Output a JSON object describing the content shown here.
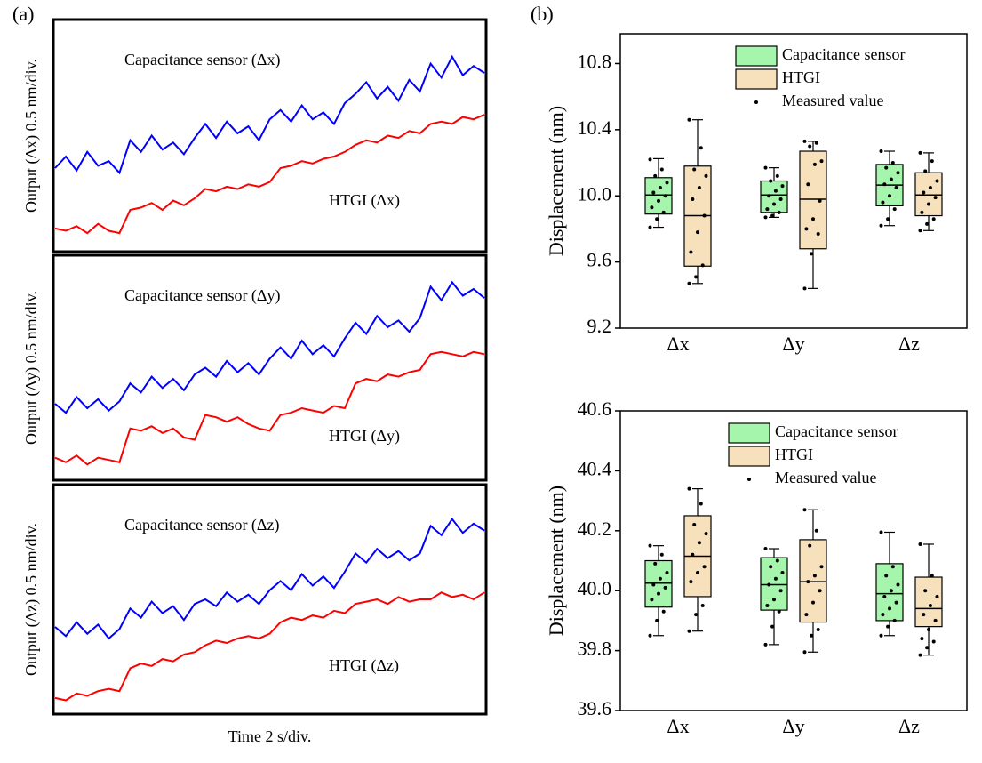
{
  "chart_data": [
    {
      "type": "line",
      "panel_label": "(a)",
      "ylabel": "Output (Δx) 0.5 nm/div.",
      "ylim": [
        0,
        10
      ],
      "series": [
        {
          "name": "Capacitance sensor (Δx)",
          "color": "#0000ff",
          "values": [
            3.6,
            4.1,
            3.5,
            4.3,
            3.7,
            3.9,
            3.4,
            4.8,
            4.3,
            5.0,
            4.4,
            4.7,
            4.2,
            4.9,
            5.5,
            4.9,
            5.6,
            5.1,
            5.4,
            4.8,
            5.7,
            6.1,
            5.6,
            6.3,
            5.7,
            6.0,
            5.5,
            6.4,
            6.8,
            7.3,
            6.6,
            7.1,
            6.5,
            7.4,
            6.9,
            8.1,
            7.5,
            8.4,
            7.6,
            8.0,
            7.7
          ]
        },
        {
          "name": "HTGI (Δx)",
          "color": "#ff0000",
          "values": [
            1.0,
            0.9,
            1.1,
            0.8,
            1.2,
            0.9,
            0.8,
            1.8,
            1.9,
            2.1,
            1.8,
            2.2,
            2.0,
            2.3,
            2.7,
            2.6,
            2.8,
            2.7,
            2.9,
            2.8,
            3.0,
            3.6,
            3.7,
            3.9,
            3.8,
            4.0,
            4.1,
            4.3,
            4.6,
            4.8,
            4.7,
            5.0,
            4.9,
            5.2,
            5.1,
            5.5,
            5.6,
            5.5,
            5.8,
            5.7,
            5.9
          ]
        }
      ]
    },
    {
      "type": "line",
      "ylabel": "Output (Δy) 0.5 nm/div.",
      "ylim": [
        0,
        10
      ],
      "series": [
        {
          "name": "Capacitance sensor (Δy)",
          "color": "#0000ff",
          "values": [
            3.4,
            3.0,
            3.7,
            3.2,
            3.6,
            3.1,
            3.5,
            4.3,
            3.9,
            4.6,
            4.1,
            4.5,
            4.0,
            4.7,
            5.0,
            4.6,
            5.3,
            4.8,
            5.2,
            4.7,
            5.4,
            5.9,
            5.4,
            6.2,
            5.6,
            6.0,
            5.5,
            6.3,
            7.0,
            6.5,
            7.3,
            6.8,
            7.1,
            6.6,
            7.2,
            8.6,
            8.0,
            8.8,
            8.2,
            8.5,
            8.1
          ]
        },
        {
          "name": "HTGI (Δy)",
          "color": "#ff0000",
          "values": [
            1.0,
            0.8,
            1.1,
            0.7,
            1.0,
            0.9,
            0.8,
            2.3,
            2.2,
            2.4,
            2.1,
            2.3,
            1.9,
            1.8,
            2.9,
            2.8,
            2.6,
            2.8,
            2.5,
            2.3,
            2.2,
            2.9,
            3.0,
            3.2,
            3.1,
            3.0,
            3.3,
            3.2,
            4.3,
            4.5,
            4.4,
            4.7,
            4.6,
            4.8,
            4.9,
            5.6,
            5.7,
            5.6,
            5.5,
            5.7,
            5.6
          ]
        }
      ]
    },
    {
      "type": "line",
      "ylabel": "Output (Δz) 0.5 nm/div.",
      "xlabel": "Time 2 s/div.",
      "ylim": [
        0,
        10
      ],
      "series": [
        {
          "name": "Capacitance sensor (Δz)",
          "color": "#0000ff",
          "values": [
            3.8,
            3.4,
            4.0,
            3.5,
            3.9,
            3.3,
            3.7,
            4.6,
            4.2,
            4.9,
            4.4,
            4.7,
            4.1,
            4.8,
            5.0,
            4.7,
            5.3,
            4.9,
            5.2,
            4.8,
            5.4,
            5.8,
            5.4,
            6.1,
            5.6,
            6.0,
            5.5,
            6.2,
            7.0,
            6.6,
            7.2,
            6.8,
            7.1,
            6.7,
            7.0,
            8.2,
            7.8,
            8.5,
            7.9,
            8.3,
            8.0
          ]
        },
        {
          "name": "HTGI (Δz)",
          "color": "#ff0000",
          "values": [
            0.7,
            0.6,
            0.9,
            0.8,
            1.0,
            1.1,
            1.0,
            2.0,
            2.2,
            2.1,
            2.4,
            2.3,
            2.6,
            2.7,
            3.0,
            3.2,
            3.1,
            3.3,
            3.4,
            3.3,
            3.5,
            4.0,
            4.2,
            4.1,
            4.3,
            4.2,
            4.5,
            4.4,
            4.8,
            4.9,
            5.0,
            4.8,
            5.1,
            4.9,
            5.0,
            5.0,
            5.3,
            5.1,
            5.2,
            5.0,
            5.3
          ]
        }
      ]
    },
    {
      "type": "box",
      "panel_label": "(b)",
      "ylabel": "Displacement (nm)",
      "categories": [
        "Δx",
        "Δy",
        "Δz"
      ],
      "ylim": [
        9.2,
        10.98
      ],
      "yticks": [
        9.2,
        9.6,
        {
          "value": 10,
          "label": "10.0"
        },
        10.4,
        10.8
      ],
      "points_name": "Measured value",
      "series": [
        {
          "name": "Capacitance sensor",
          "color": "#a6f5ad",
          "min": [
            9.81,
            9.87,
            9.82
          ],
          "q1": [
            9.89,
            9.9,
            9.94
          ],
          "median": [
            10.005,
            10.005,
            10.065
          ],
          "q3": [
            10.11,
            10.09,
            10.19
          ],
          "max": [
            10.225,
            10.17,
            10.27
          ],
          "points": [
            [
              10.22,
              10.16,
              10.12,
              10.08,
              10.05,
              10.02,
              10.0,
              9.97,
              9.93,
              9.9,
              9.86,
              9.81
            ],
            [
              10.17,
              10.12,
              10.09,
              10.06,
              10.03,
              10.0,
              9.98,
              9.95,
              9.92,
              9.9,
              9.88,
              9.87
            ],
            [
              10.27,
              10.2,
              10.17,
              10.14,
              10.1,
              10.07,
              10.05,
              10.0,
              9.96,
              9.92,
              9.86,
              9.82
            ]
          ]
        },
        {
          "name": "HTGI",
          "color": "#f7e0bc",
          "min": [
            9.47,
            9.44,
            9.79
          ],
          "q1": [
            9.575,
            9.68,
            9.88
          ],
          "median": [
            9.88,
            9.98,
            10.005
          ],
          "q3": [
            10.18,
            10.27,
            10.14
          ],
          "max": [
            10.46,
            10.33,
            10.26
          ],
          "points": [
            [
              10.46,
              10.29,
              10.16,
              10.12,
              10.05,
              9.98,
              9.88,
              9.78,
              9.66,
              9.58,
              9.51,
              9.47
            ],
            [
              10.33,
              10.32,
              10.3,
              10.21,
              10.19,
              10.07,
              9.97,
              9.86,
              9.8,
              9.77,
              9.65,
              9.44
            ],
            [
              10.26,
              10.21,
              10.15,
              10.09,
              10.05,
              10.02,
              9.99,
              9.95,
              9.9,
              9.86,
              9.83,
              9.79
            ]
          ]
        }
      ]
    },
    {
      "type": "box",
      "ylabel": "Displacement (nm)",
      "categories": [
        "Δx",
        "Δy",
        "Δz"
      ],
      "ylim": [
        39.6,
        40.6
      ],
      "yticks": [
        39.6,
        39.8,
        {
          "value": 40,
          "label": "40.0"
        },
        40.2,
        40.4,
        40.6
      ],
      "points_name": "Measured value",
      "series": [
        {
          "name": "Capacitance sensor",
          "color": "#a6f5ad",
          "min": [
            39.85,
            39.82,
            39.85
          ],
          "q1": [
            39.945,
            39.935,
            39.9
          ],
          "median": [
            40.025,
            40.02,
            39.99
          ],
          "q3": [
            40.1,
            40.11,
            40.09
          ],
          "max": [
            40.15,
            40.14,
            40.195
          ],
          "points": [
            [
              40.15,
              40.12,
              40.09,
              40.06,
              40.04,
              40.02,
              40.01,
              39.99,
              39.97,
              39.93,
              39.9,
              39.85
            ],
            [
              40.14,
              40.1,
              40.08,
              40.06,
              40.04,
              40.02,
              40.0,
              39.97,
              39.95,
              39.93,
              39.88,
              39.82
            ],
            [
              40.195,
              40.08,
              40.05,
              40.02,
              40.0,
              39.98,
              39.96,
              39.94,
              39.92,
              39.9,
              39.88,
              39.85
            ]
          ]
        },
        {
          "name": "HTGI",
          "color": "#f7e0bc",
          "min": [
            39.865,
            39.795,
            39.785
          ],
          "q1": [
            39.98,
            39.895,
            39.88
          ],
          "median": [
            40.115,
            40.03,
            39.94
          ],
          "q3": [
            40.25,
            40.17,
            40.045
          ],
          "max": [
            40.34,
            40.27,
            40.155
          ],
          "points": [
            [
              40.34,
              40.29,
              40.22,
              40.19,
              40.16,
              40.12,
              40.08,
              40.06,
              40.03,
              39.95,
              39.92,
              39.865
            ],
            [
              40.27,
              40.2,
              40.15,
              40.08,
              40.05,
              40.03,
              40.0,
              39.96,
              39.92,
              39.87,
              39.85,
              39.795
            ],
            [
              40.155,
              40.05,
              40.0,
              39.98,
              39.95,
              39.92,
              39.9,
              39.87,
              39.84,
              39.83,
              39.81,
              39.785
            ]
          ]
        }
      ]
    }
  ]
}
